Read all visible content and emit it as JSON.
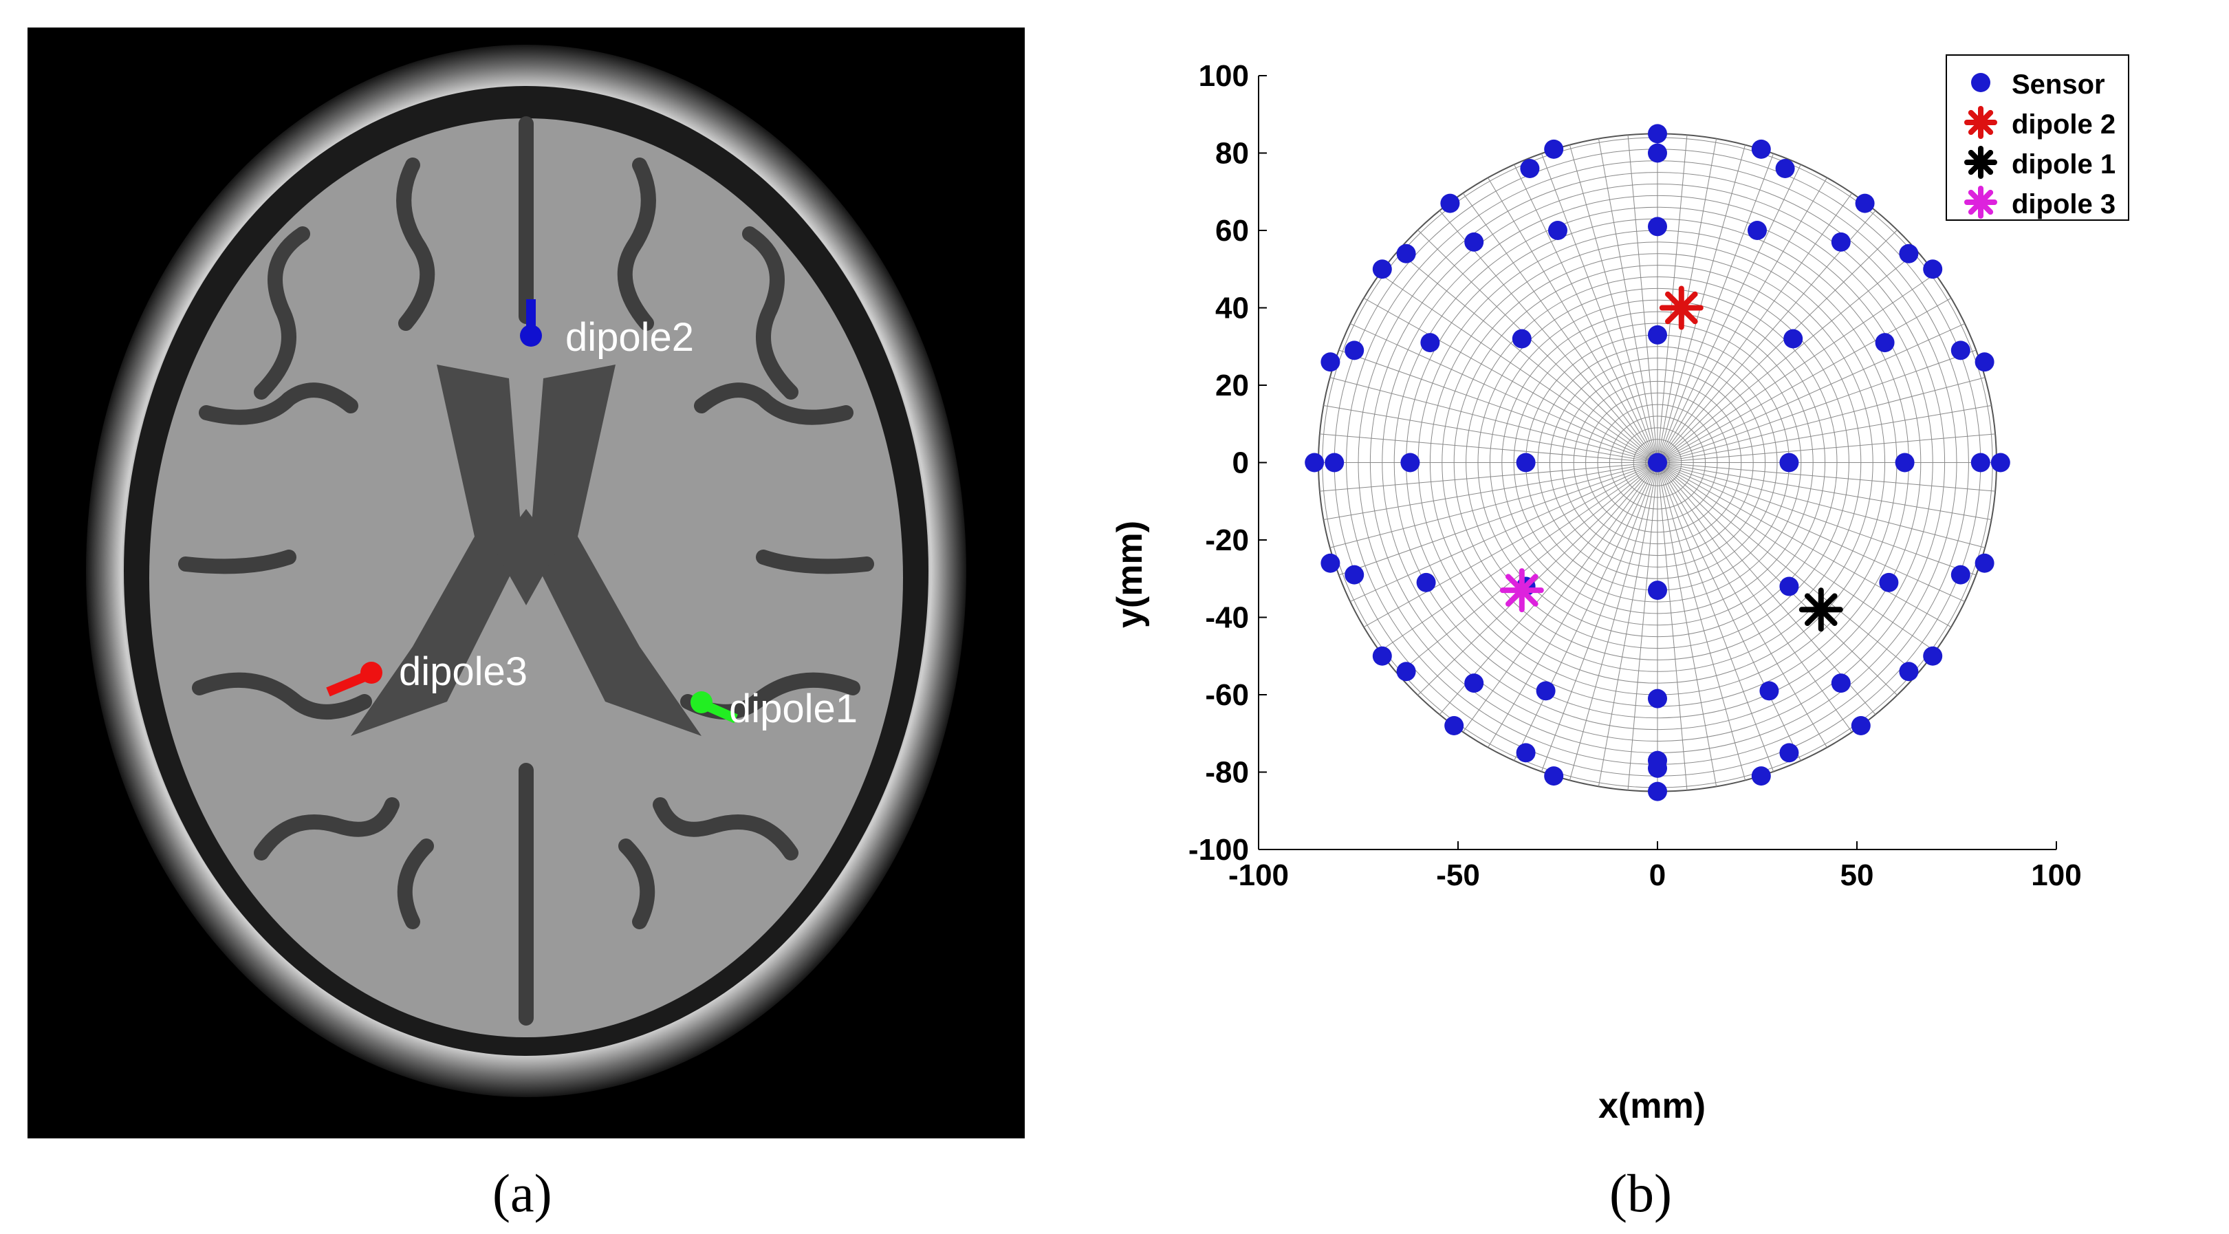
{
  "panel_a": {
    "caption": "(a)",
    "labels": {
      "dipole2": "dipole2",
      "dipole3": "dipole3",
      "dipole1": "dipole1"
    },
    "colors": {
      "dipole2": "#1010d0",
      "dipole3": "#ee1111",
      "dipole1": "#22ee22",
      "label": "#ffffff"
    }
  },
  "panel_b": {
    "caption": "(b)"
  },
  "chart_data": {
    "type": "scatter",
    "xlabel": "x(mm)",
    "ylabel": "y(mm)",
    "xlim": [
      -100,
      100
    ],
    "ylim": [
      -100,
      100
    ],
    "xticks": [
      -100,
      -50,
      0,
      50,
      100
    ],
    "yticks": [
      -100,
      -80,
      -60,
      -40,
      -20,
      0,
      20,
      40,
      60,
      80,
      100
    ],
    "grid": "polar mesh disc of radius 85 mm",
    "legend_position": "top-right",
    "series": [
      {
        "name": "Sensor",
        "marker": "filled-circle",
        "color": "#1a1acf",
        "x": [
          0,
          0,
          0,
          0,
          0,
          0,
          0,
          0,
          0,
          0,
          -26,
          26,
          -32,
          32,
          -25,
          25,
          -52,
          52,
          -46,
          46,
          -69,
          69,
          -63,
          63,
          -57,
          57,
          -34,
          34,
          -82,
          82,
          -76,
          76,
          -86,
          86,
          -81,
          81,
          -62,
          62,
          -33,
          33,
          -82,
          82,
          -76,
          76,
          -58,
          58,
          -33,
          33,
          -69,
          69,
          -63,
          63,
          -46,
          46,
          -28,
          28,
          -51,
          51,
          -33,
          33,
          -26,
          26
        ],
        "y": [
          85,
          80,
          61,
          33,
          0,
          -33,
          -61,
          -77,
          -79,
          -85,
          81,
          81,
          76,
          76,
          60,
          60,
          67,
          67,
          57,
          57,
          50,
          50,
          54,
          54,
          31,
          31,
          32,
          32,
          26,
          26,
          29,
          29,
          0,
          0,
          0,
          0,
          0,
          0,
          0,
          0,
          -26,
          -26,
          -29,
          -29,
          -31,
          -31,
          -32,
          -32,
          -50,
          -50,
          -54,
          -54,
          -57,
          -57,
          -59,
          -59,
          -68,
          -68,
          -75,
          -75,
          -81,
          -81
        ]
      },
      {
        "name": "dipole 2",
        "marker": "asterisk",
        "color": "#dd1111",
        "x": [
          6
        ],
        "y": [
          40
        ]
      },
      {
        "name": "dipole 1",
        "marker": "asterisk",
        "color": "#000000",
        "x": [
          41
        ],
        "y": [
          -38
        ]
      },
      {
        "name": "dipole 3",
        "marker": "asterisk",
        "color": "#dd22dd",
        "x": [
          -34
        ],
        "y": [
          -33
        ]
      }
    ]
  }
}
